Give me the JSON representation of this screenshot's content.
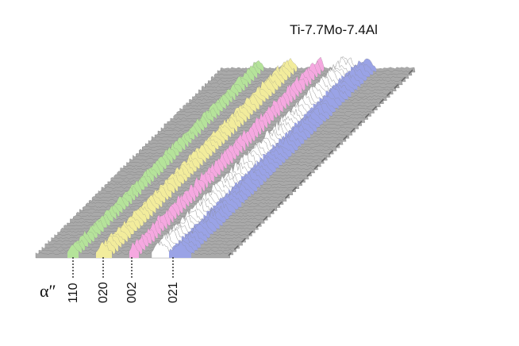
{
  "chart_data": {
    "type": "line",
    "style": "3D waterfall stack of diffraction patterns",
    "title": "Ti-7.7Mo-7.4Al",
    "phase_label": "α″",
    "peaks": [
      {
        "label": "110",
        "color": "#b5e39a"
      },
      {
        "label": "020",
        "color": "#f2ec9c"
      },
      {
        "label": "002",
        "color": "#f5a8e0"
      },
      {
        "label": "",
        "color": "#ffffff"
      },
      {
        "label": "021",
        "color": "#9aa3e6"
      }
    ],
    "trace_color": "#a9a9a9",
    "grid": false
  }
}
